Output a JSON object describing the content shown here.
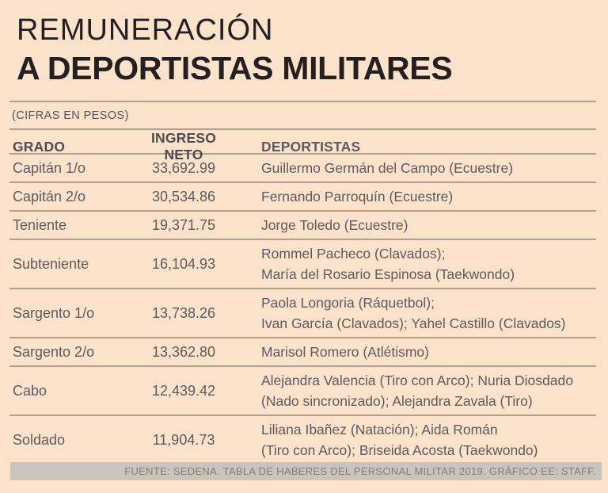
{
  "title": {
    "line1": "REMUNERACIÓN",
    "line2": "A DEPORTISTAS MILITARES"
  },
  "subtitle": "(CIFRAS EN PESOS)",
  "footer": "FUENTE: SEDENA. TABLA DE HABERES DEL PERSONAL MILITAR 2019. GRÁFICO EE: STAFF.",
  "colors": {
    "background": "#fbe2cb",
    "title_text": "#242021",
    "body_text": "#5d5b5e",
    "rule": "#6f665c",
    "footer_bar": "#c9c4bc",
    "footer_text": "#827d76"
  },
  "chart_data": {
    "type": "table",
    "title": "REMUNERACIÓN A DEPORTISTAS MILITARES",
    "subtitle": "(CIFRAS EN PESOS)",
    "columns": [
      "GRADO",
      "INGRESO NETO",
      "DEPORTISTAS"
    ],
    "rows": [
      {
        "grado": "Capitán 1/o",
        "ingreso_neto": "33,692.99",
        "ingreso_neto_num": 33692.99,
        "deportistas_lines": [
          "Guillermo Germán del Campo (Ecuestre)"
        ]
      },
      {
        "grado": "Capitán 2/o",
        "ingreso_neto": "30,534.86",
        "ingreso_neto_num": 30534.86,
        "deportistas_lines": [
          "Fernando Parroquín (Ecuestre)"
        ]
      },
      {
        "grado": "Teniente",
        "ingreso_neto": "19,371.75",
        "ingreso_neto_num": 19371.75,
        "deportistas_lines": [
          "Jorge Toledo (Ecuestre)"
        ]
      },
      {
        "grado": "Subteniente",
        "ingreso_neto": "16,104.93",
        "ingreso_neto_num": 16104.93,
        "deportistas_lines": [
          "Rommel Pacheco (Clavados);",
          "María del Rosario Espinosa (Taekwondo)"
        ]
      },
      {
        "grado": "Sargento 1/o",
        "ingreso_neto": "13,738.26",
        "ingreso_neto_num": 13738.26,
        "deportistas_lines": [
          "Paola Longoria (Ráquetbol);",
          "Ivan García (Clavados); Yahel Castillo (Clavados)"
        ]
      },
      {
        "grado": "Sargento 2/o",
        "ingreso_neto": "13,362.80",
        "ingreso_neto_num": 13362.8,
        "deportistas_lines": [
          "Marisol Romero (Atlétismo)"
        ]
      },
      {
        "grado": "Cabo",
        "ingreso_neto": "12,439.42",
        "ingreso_neto_num": 12439.42,
        "deportistas_lines": [
          "Alejandra Valencia (Tiro con Arco); Nuria Diosdado",
          "(Nado sincronizado); Alejandra Zavala (Tiro)"
        ]
      },
      {
        "grado": "Soldado",
        "ingreso_neto": "11,904.73",
        "ingreso_neto_num": 11904.73,
        "deportistas_lines": [
          "Liliana Ibañez (Natación); Aida Román",
          "(Tiro con Arco); Briseida Acosta (Taekwondo)"
        ]
      }
    ],
    "source": "FUENTE: SEDENA. TABLA DE HABERES DEL PERSONAL MILITAR 2019. GRÁFICO EE: STAFF."
  }
}
